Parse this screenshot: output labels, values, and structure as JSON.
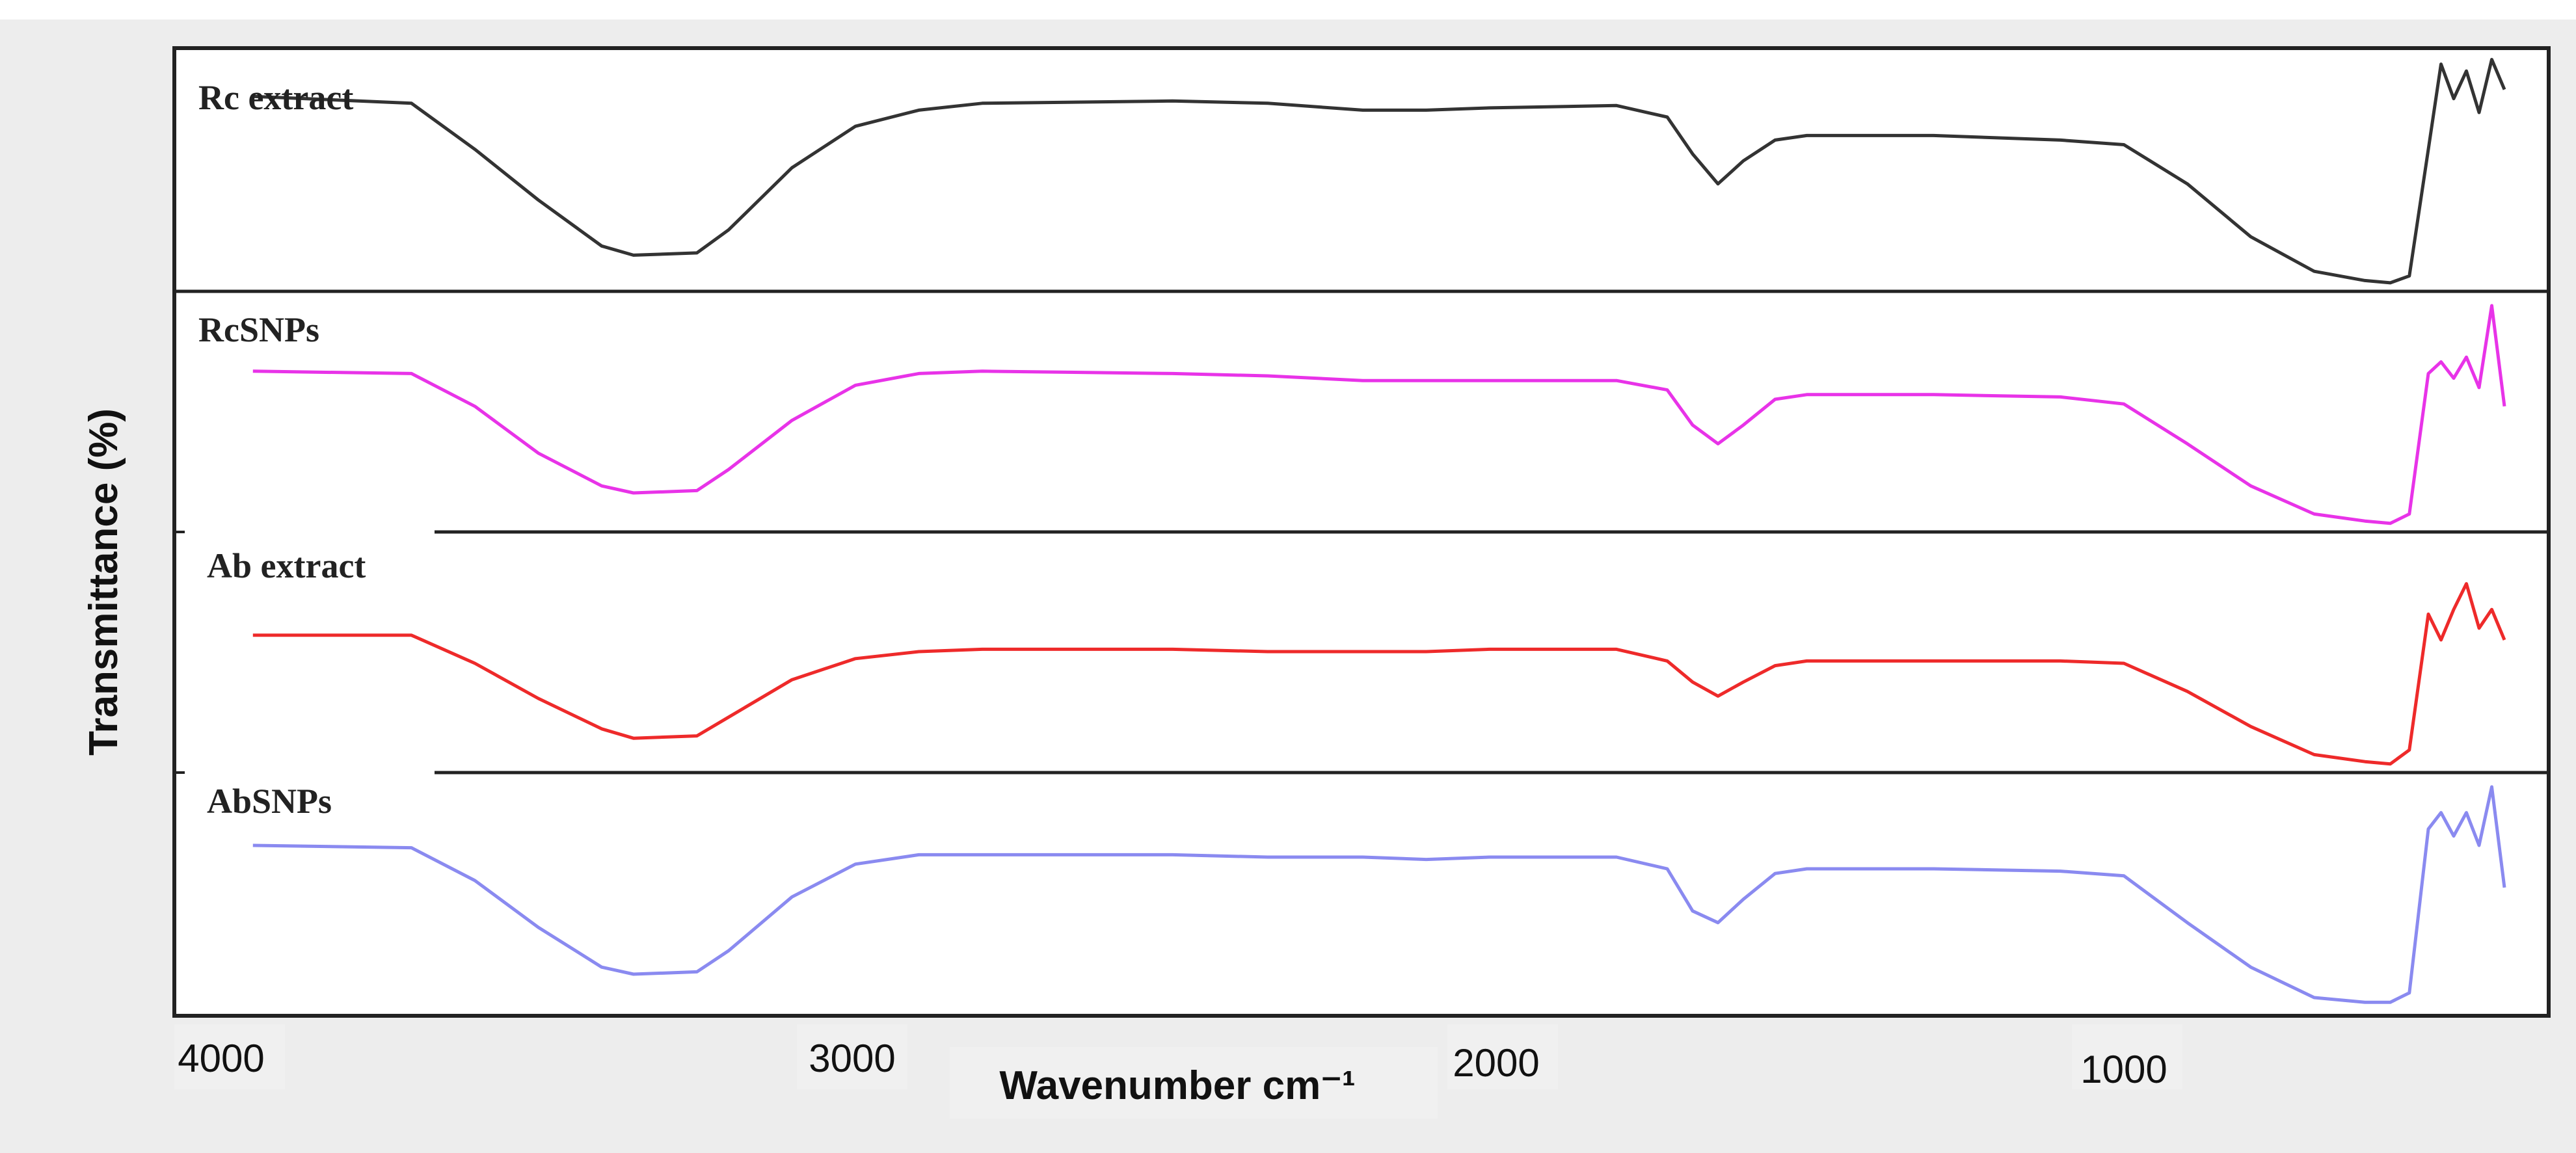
{
  "chart_data": {
    "type": "line",
    "xlabel": "Wavenumber cm⁻¹",
    "ylabel": "Transmittance (%)",
    "xlim": [
      4000,
      400
    ],
    "x_reversed": true,
    "x_ticks": [
      {
        "value": 4000,
        "label": "4000"
      },
      {
        "value": 3000,
        "label": "3000"
      },
      {
        "value": 2000,
        "label": "2000"
      },
      {
        "value": 1000,
        "label": "1000"
      }
    ],
    "y_unit": "relative transmittance within each stacked panel (1 = baseline, 0 = panel bottom)",
    "series": [
      {
        "name": "Rc extract",
        "color": "#333333",
        "points": [
          [
            3950,
            0.83
          ],
          [
            3700,
            0.8
          ],
          [
            3600,
            0.6
          ],
          [
            3500,
            0.38
          ],
          [
            3400,
            0.18
          ],
          [
            3350,
            0.14
          ],
          [
            3250,
            0.15
          ],
          [
            3200,
            0.25
          ],
          [
            3100,
            0.52
          ],
          [
            3000,
            0.7
          ],
          [
            2900,
            0.77
          ],
          [
            2800,
            0.8
          ],
          [
            2500,
            0.81
          ],
          [
            2350,
            0.8
          ],
          [
            2200,
            0.77
          ],
          [
            2100,
            0.77
          ],
          [
            2000,
            0.78
          ],
          [
            1800,
            0.79
          ],
          [
            1720,
            0.74
          ],
          [
            1680,
            0.58
          ],
          [
            1640,
            0.45
          ],
          [
            1600,
            0.55
          ],
          [
            1550,
            0.64
          ],
          [
            1500,
            0.66
          ],
          [
            1300,
            0.66
          ],
          [
            1100,
            0.64
          ],
          [
            1000,
            0.62
          ],
          [
            900,
            0.45
          ],
          [
            800,
            0.22
          ],
          [
            700,
            0.07
          ],
          [
            620,
            0.03
          ],
          [
            580,
            0.02
          ],
          [
            550,
            0.05
          ],
          [
            520,
            0.6
          ],
          [
            500,
            0.97
          ],
          [
            480,
            0.82
          ],
          [
            460,
            0.94
          ],
          [
            440,
            0.76
          ],
          [
            420,
            0.99
          ],
          [
            400,
            0.86
          ]
        ]
      },
      {
        "name": "RcSNPs",
        "color": "#e833e8",
        "points": [
          [
            3950,
            0.67
          ],
          [
            3700,
            0.66
          ],
          [
            3600,
            0.52
          ],
          [
            3500,
            0.32
          ],
          [
            3400,
            0.18
          ],
          [
            3350,
            0.15
          ],
          [
            3250,
            0.16
          ],
          [
            3200,
            0.25
          ],
          [
            3100,
            0.46
          ],
          [
            3000,
            0.61
          ],
          [
            2900,
            0.66
          ],
          [
            2800,
            0.67
          ],
          [
            2500,
            0.66
          ],
          [
            2350,
            0.65
          ],
          [
            2200,
            0.63
          ],
          [
            2100,
            0.63
          ],
          [
            2000,
            0.63
          ],
          [
            1800,
            0.63
          ],
          [
            1720,
            0.59
          ],
          [
            1680,
            0.44
          ],
          [
            1640,
            0.36
          ],
          [
            1600,
            0.44
          ],
          [
            1550,
            0.55
          ],
          [
            1500,
            0.57
          ],
          [
            1300,
            0.57
          ],
          [
            1100,
            0.56
          ],
          [
            1000,
            0.53
          ],
          [
            900,
            0.36
          ],
          [
            800,
            0.18
          ],
          [
            700,
            0.06
          ],
          [
            620,
            0.03
          ],
          [
            580,
            0.02
          ],
          [
            550,
            0.06
          ],
          [
            520,
            0.66
          ],
          [
            500,
            0.71
          ],
          [
            480,
            0.64
          ],
          [
            460,
            0.73
          ],
          [
            440,
            0.6
          ],
          [
            420,
            0.95
          ],
          [
            400,
            0.52
          ]
        ]
      },
      {
        "name": "Ab extract",
        "color": "#ee2a2a",
        "points": [
          [
            3950,
            0.57
          ],
          [
            3700,
            0.57
          ],
          [
            3600,
            0.45
          ],
          [
            3500,
            0.3
          ],
          [
            3400,
            0.17
          ],
          [
            3350,
            0.13
          ],
          [
            3250,
            0.14
          ],
          [
            3200,
            0.22
          ],
          [
            3100,
            0.38
          ],
          [
            3000,
            0.47
          ],
          [
            2900,
            0.5
          ],
          [
            2800,
            0.51
          ],
          [
            2500,
            0.51
          ],
          [
            2350,
            0.5
          ],
          [
            2200,
            0.5
          ],
          [
            2100,
            0.5
          ],
          [
            2000,
            0.51
          ],
          [
            1800,
            0.51
          ],
          [
            1720,
            0.46
          ],
          [
            1680,
            0.37
          ],
          [
            1640,
            0.31
          ],
          [
            1600,
            0.37
          ],
          [
            1550,
            0.44
          ],
          [
            1500,
            0.46
          ],
          [
            1300,
            0.46
          ],
          [
            1100,
            0.46
          ],
          [
            1000,
            0.45
          ],
          [
            900,
            0.33
          ],
          [
            800,
            0.18
          ],
          [
            700,
            0.06
          ],
          [
            620,
            0.03
          ],
          [
            580,
            0.02
          ],
          [
            550,
            0.08
          ],
          [
            520,
            0.66
          ],
          [
            500,
            0.55
          ],
          [
            480,
            0.68
          ],
          [
            460,
            0.79
          ],
          [
            440,
            0.6
          ],
          [
            420,
            0.68
          ],
          [
            400,
            0.55
          ]
        ]
      },
      {
        "name": "AbSNPs",
        "color": "#8a8af0",
        "points": [
          [
            3950,
            0.7
          ],
          [
            3700,
            0.69
          ],
          [
            3600,
            0.55
          ],
          [
            3500,
            0.35
          ],
          [
            3400,
            0.18
          ],
          [
            3350,
            0.15
          ],
          [
            3250,
            0.16
          ],
          [
            3200,
            0.25
          ],
          [
            3100,
            0.48
          ],
          [
            3000,
            0.62
          ],
          [
            2900,
            0.66
          ],
          [
            2800,
            0.66
          ],
          [
            2500,
            0.66
          ],
          [
            2350,
            0.65
          ],
          [
            2200,
            0.65
          ],
          [
            2100,
            0.64
          ],
          [
            2000,
            0.65
          ],
          [
            1800,
            0.65
          ],
          [
            1720,
            0.6
          ],
          [
            1680,
            0.42
          ],
          [
            1640,
            0.37
          ],
          [
            1600,
            0.47
          ],
          [
            1550,
            0.58
          ],
          [
            1500,
            0.6
          ],
          [
            1300,
            0.6
          ],
          [
            1100,
            0.59
          ],
          [
            1000,
            0.57
          ],
          [
            900,
            0.37
          ],
          [
            800,
            0.18
          ],
          [
            700,
            0.05
          ],
          [
            620,
            0.03
          ],
          [
            580,
            0.03
          ],
          [
            550,
            0.07
          ],
          [
            520,
            0.77
          ],
          [
            500,
            0.84
          ],
          [
            480,
            0.74
          ],
          [
            460,
            0.84
          ],
          [
            440,
            0.7
          ],
          [
            420,
            0.95
          ],
          [
            400,
            0.52
          ]
        ]
      }
    ],
    "grid": false,
    "legend": "inline labels above each trace"
  }
}
